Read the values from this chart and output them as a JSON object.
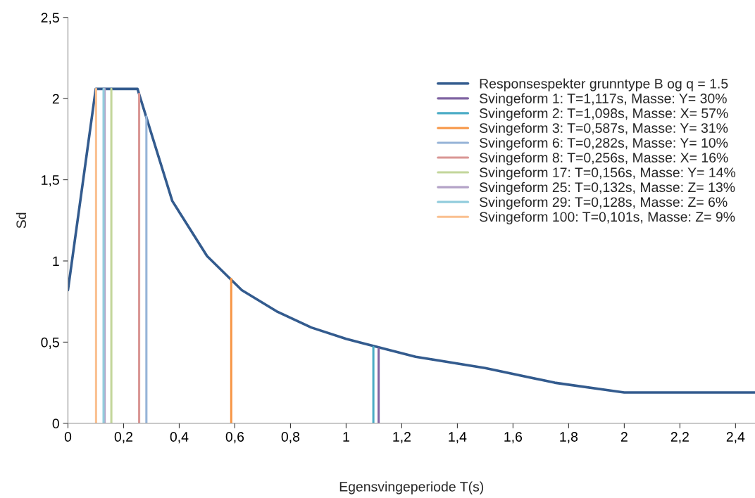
{
  "chart_data": {
    "type": "line",
    "xlabel": "Egensvingeperiode T(s)",
    "ylabel": "Sd",
    "xlim": [
      0,
      2.47
    ],
    "ylim": [
      0,
      2.5
    ],
    "xticks": [
      0,
      {
        "value": 0.2,
        "label": "0,2"
      },
      {
        "value": 0.4,
        "label": "0,4"
      },
      {
        "value": 0.6,
        "label": "0,6"
      },
      {
        "value": 0.8,
        "label": "0,8"
      },
      1,
      {
        "value": 1.2,
        "label": "1,2"
      },
      {
        "value": 1.4,
        "label": "1,4"
      },
      {
        "value": 1.6,
        "label": "1,6"
      },
      {
        "value": 1.8,
        "label": "1,8"
      },
      2,
      {
        "value": 2.2,
        "label": "2,2"
      },
      {
        "value": 2.4,
        "label": "2,4"
      }
    ],
    "yticks": [
      0,
      {
        "value": 0.5,
        "label": "0,5"
      },
      1,
      {
        "value": 1.5,
        "label": "1,5"
      },
      2,
      {
        "value": 2.5,
        "label": "2,5"
      }
    ],
    "grid": false,
    "legend": "top right",
    "marker": "none",
    "line_style": "solid",
    "series": [
      {
        "name": "Responsespekter grunntype B og q = 1.5",
        "color": "#335b8e",
        "x": [
          0,
          0.1,
          0.25,
          0.375,
          0.5,
          0.625,
          0.75,
          0.875,
          1.0,
          1.25,
          1.5,
          1.75,
          2.0,
          2.47
        ],
        "values": [
          0.82,
          2.06,
          2.06,
          1.37,
          1.03,
          0.82,
          0.69,
          0.59,
          0.52,
          0.41,
          0.34,
          0.25,
          0.19,
          0.19
        ]
      },
      {
        "name": "Svingeform 1: T=1,117s, Masse: Y= 30%",
        "color": "#8064a2",
        "x": [
          1.117,
          1.117
        ],
        "values": [
          0,
          0.46
        ]
      },
      {
        "name": "Svingeform 2: T=1,098s, Masse: X= 57%",
        "color": "#4bacc6",
        "x": [
          1.098,
          1.098
        ],
        "values": [
          0,
          0.47
        ]
      },
      {
        "name": "Svingeform 3: T=0,587s, Masse: Y= 31%",
        "color": "#f79646",
        "x": [
          0.587,
          0.587
        ],
        "values": [
          0,
          0.89
        ]
      },
      {
        "name": "Svingeform 6: T=0,282s, Masse: Y= 10%",
        "color": "#95b3d7",
        "x": [
          0.282,
          0.282
        ],
        "values": [
          0,
          1.89
        ]
      },
      {
        "name": "Svingeform 8: T=0,256s, Masse: X= 16%",
        "color": "#d99694",
        "x": [
          0.256,
          0.256
        ],
        "values": [
          0,
          2.03
        ]
      },
      {
        "name": "Svingeform 17: T=0,156s, Masse: Y= 14%",
        "color": "#c3d69b",
        "x": [
          0.156,
          0.156
        ],
        "values": [
          0,
          2.06
        ]
      },
      {
        "name": "Svingeform 25: T=0,132s, Masse: Z= 13%",
        "color": "#b3a2c7",
        "x": [
          0.132,
          0.132
        ],
        "values": [
          0,
          2.06
        ]
      },
      {
        "name": "Svingeform 29: T=0,128s, Masse: Z= 6%",
        "color": "#93cddd",
        "x": [
          0.128,
          0.128
        ],
        "values": [
          0,
          2.06
        ]
      },
      {
        "name": "Svingeform 100: T=0,101s, Masse: Z= 9%",
        "color": "#fac090",
        "x": [
          0.101,
          0.101
        ],
        "values": [
          0,
          2.06
        ]
      }
    ]
  }
}
